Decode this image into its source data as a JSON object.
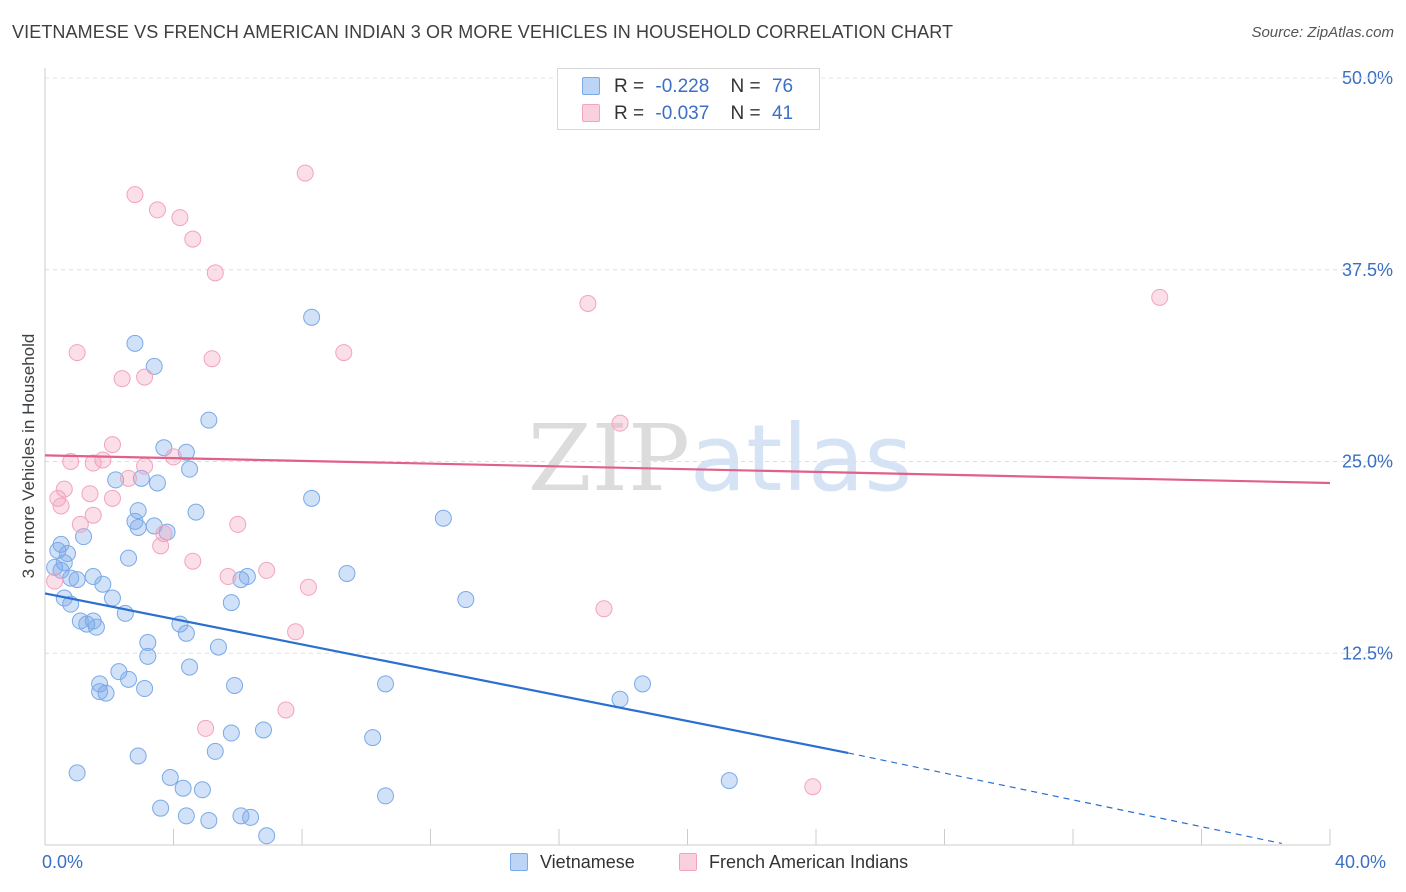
{
  "chart_data": {
    "type": "scatter",
    "title": "VIETNAMESE VS FRENCH AMERICAN INDIAN 3 OR MORE VEHICLES IN HOUSEHOLD CORRELATION CHART",
    "source": "Source: ZipAtlas.com",
    "xlabel": "",
    "ylabel": "3 or more Vehicles in Household",
    "xlim": [
      0,
      40
    ],
    "ylim": [
      0,
      50
    ],
    "x_tick_labels": [
      "0.0%",
      "40.0%"
    ],
    "y_ticks": [
      12.5,
      25.0,
      37.5,
      50.0
    ],
    "y_tick_labels": [
      "12.5%",
      "25.0%",
      "37.5%",
      "50.0%"
    ],
    "grid": true,
    "legend_position": "top-center",
    "watermark": "ZIPatlas",
    "series": [
      {
        "name": "Vietnamese",
        "color": "#7aaae8",
        "line_color": "#2b6fd1",
        "r_label": "R =",
        "r_value": "-0.228",
        "n_label": "N =",
        "n_value": "76",
        "trend": {
          "x0": 0.0,
          "y0": 16.4,
          "x1": 25.0,
          "y1": 6.0,
          "dash_x1": 38.5,
          "dash_y1": 0.1
        },
        "points": [
          [
            0.3,
            18.1
          ],
          [
            0.4,
            19.2
          ],
          [
            0.5,
            19.6
          ],
          [
            0.6,
            18.4
          ],
          [
            0.7,
            19.0
          ],
          [
            0.5,
            17.9
          ],
          [
            0.8,
            17.4
          ],
          [
            0.6,
            16.1
          ],
          [
            0.8,
            15.7
          ],
          [
            1.0,
            17.3
          ],
          [
            1.2,
            20.1
          ],
          [
            1.5,
            17.5
          ],
          [
            1.8,
            17.0
          ],
          [
            2.1,
            16.1
          ],
          [
            1.1,
            14.6
          ],
          [
            1.3,
            14.4
          ],
          [
            1.5,
            14.6
          ],
          [
            1.6,
            14.2
          ],
          [
            2.5,
            15.1
          ],
          [
            2.6,
            18.7
          ],
          [
            2.9,
            20.7
          ],
          [
            2.8,
            21.1
          ],
          [
            2.9,
            21.8
          ],
          [
            3.0,
            23.9
          ],
          [
            3.5,
            23.6
          ],
          [
            2.8,
            32.7
          ],
          [
            3.4,
            31.2
          ],
          [
            3.7,
            25.9
          ],
          [
            4.4,
            25.6
          ],
          [
            4.5,
            24.5
          ],
          [
            4.7,
            21.7
          ],
          [
            5.1,
            27.7
          ],
          [
            3.8,
            20.4
          ],
          [
            3.2,
            13.2
          ],
          [
            3.2,
            12.3
          ],
          [
            4.2,
            14.4
          ],
          [
            4.4,
            13.8
          ],
          [
            4.5,
            11.6
          ],
          [
            2.3,
            11.3
          ],
          [
            2.6,
            10.8
          ],
          [
            1.7,
            10.0
          ],
          [
            1.9,
            9.9
          ],
          [
            1.7,
            10.5
          ],
          [
            3.1,
            10.2
          ],
          [
            5.4,
            12.9
          ],
          [
            5.8,
            15.8
          ],
          [
            6.1,
            17.3
          ],
          [
            6.3,
            17.5
          ],
          [
            5.9,
            10.4
          ],
          [
            5.8,
            7.3
          ],
          [
            6.8,
            7.5
          ],
          [
            5.3,
            6.1
          ],
          [
            2.9,
            5.8
          ],
          [
            1.0,
            4.7
          ],
          [
            3.9,
            4.4
          ],
          [
            4.3,
            3.7
          ],
          [
            4.9,
            3.6
          ],
          [
            3.6,
            2.4
          ],
          [
            4.4,
            1.9
          ],
          [
            5.1,
            1.6
          ],
          [
            6.1,
            1.9
          ],
          [
            6.4,
            1.8
          ],
          [
            6.9,
            0.6
          ],
          [
            8.3,
            34.4
          ],
          [
            8.3,
            22.6
          ],
          [
            9.4,
            17.7
          ],
          [
            10.2,
            7.0
          ],
          [
            10.6,
            10.5
          ],
          [
            10.6,
            3.2
          ],
          [
            12.4,
            21.3
          ],
          [
            13.1,
            16.0
          ],
          [
            17.9,
            9.5
          ],
          [
            18.6,
            10.5
          ],
          [
            21.3,
            4.2
          ],
          [
            3.4,
            20.8
          ],
          [
            2.2,
            23.8
          ]
        ]
      },
      {
        "name": "French American Indians",
        "color": "#f4a3bc",
        "line_color": "#e0608a",
        "r_label": "R =",
        "r_value": "-0.037",
        "n_label": "N =",
        "n_value": "41",
        "trend": {
          "x0": 0.0,
          "y0": 25.4,
          "x1": 40.0,
          "y1": 23.6
        },
        "points": [
          [
            0.3,
            17.2
          ],
          [
            0.4,
            22.6
          ],
          [
            0.5,
            22.1
          ],
          [
            0.6,
            23.2
          ],
          [
            0.8,
            25.0
          ],
          [
            1.1,
            20.9
          ],
          [
            1.0,
            32.1
          ],
          [
            1.5,
            24.9
          ],
          [
            1.4,
            22.9
          ],
          [
            1.8,
            25.1
          ],
          [
            2.1,
            22.6
          ],
          [
            2.1,
            26.1
          ],
          [
            2.4,
            30.4
          ],
          [
            2.6,
            23.9
          ],
          [
            3.1,
            30.5
          ],
          [
            3.1,
            24.7
          ],
          [
            2.8,
            42.4
          ],
          [
            3.5,
            41.4
          ],
          [
            3.6,
            19.5
          ],
          [
            3.7,
            20.3
          ],
          [
            4.0,
            25.3
          ],
          [
            4.2,
            40.9
          ],
          [
            4.6,
            39.5
          ],
          [
            4.6,
            18.5
          ],
          [
            5.2,
            31.7
          ],
          [
            5.3,
            37.3
          ],
          [
            5.7,
            17.5
          ],
          [
            6.0,
            20.9
          ],
          [
            6.9,
            17.9
          ],
          [
            7.5,
            8.8
          ],
          [
            7.8,
            13.9
          ],
          [
            8.2,
            16.8
          ],
          [
            8.1,
            43.8
          ],
          [
            9.3,
            32.1
          ],
          [
            5.0,
            7.6
          ],
          [
            16.9,
            35.3
          ],
          [
            17.4,
            15.4
          ],
          [
            17.9,
            27.5
          ],
          [
            23.9,
            3.8
          ],
          [
            34.7,
            35.7
          ],
          [
            1.5,
            21.5
          ]
        ]
      }
    ]
  }
}
